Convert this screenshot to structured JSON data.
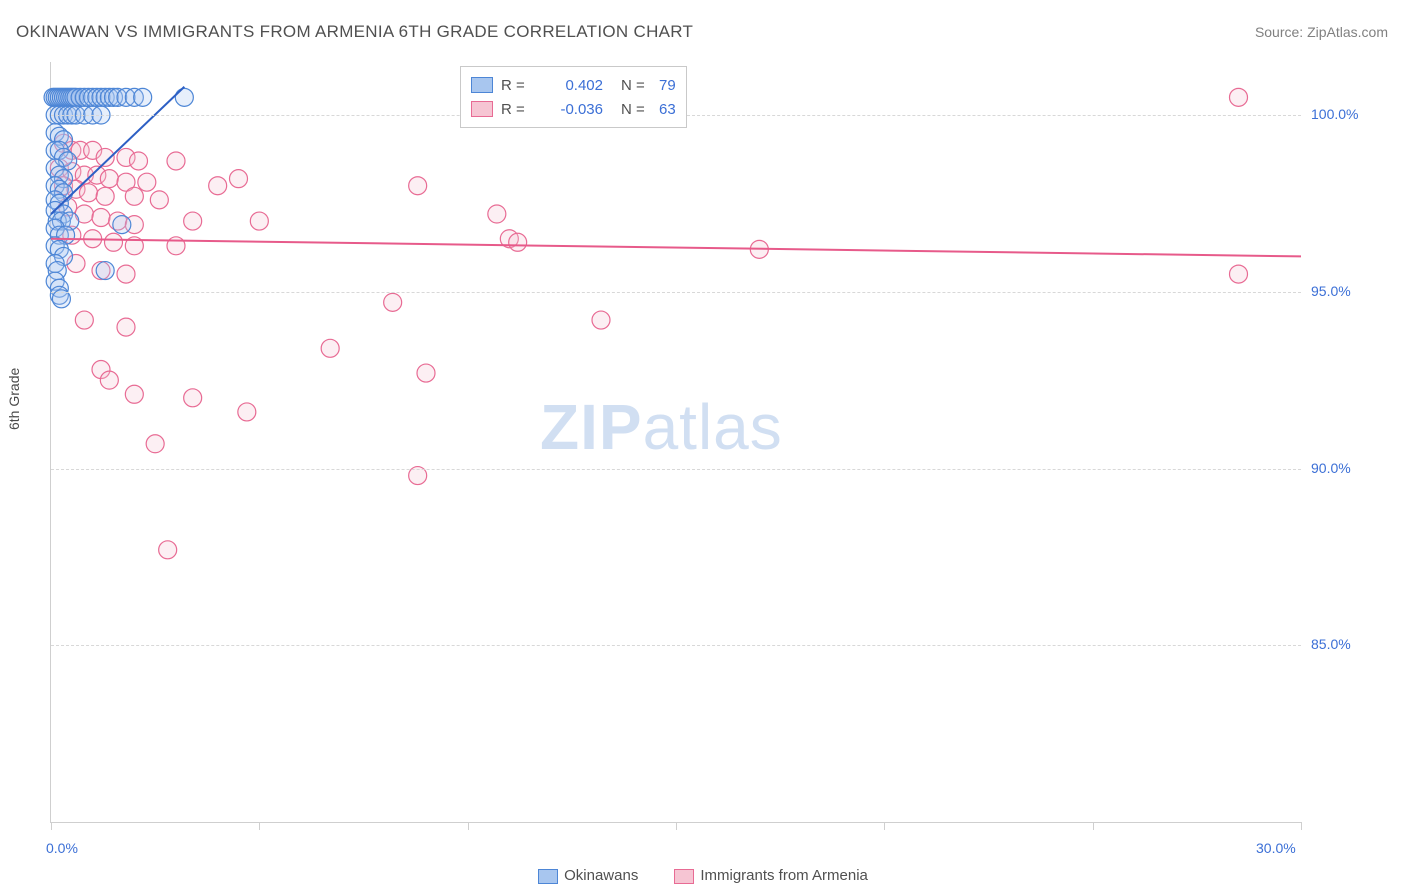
{
  "title": "OKINAWAN VS IMMIGRANTS FROM ARMENIA 6TH GRADE CORRELATION CHART",
  "source_label": "Source: ",
  "source_name": "ZipAtlas.com",
  "watermark_zip": "ZIP",
  "watermark_rest": "atlas",
  "chart": {
    "type": "scatter",
    "ylabel": "6th Grade",
    "xlim": [
      0,
      30
    ],
    "ylim": [
      80,
      101.5
    ],
    "xticks": [
      0,
      5,
      10,
      15,
      20,
      25,
      30
    ],
    "xtick_labels_shown": {
      "0": "0.0%",
      "30": "30.0%"
    },
    "yticks": [
      85,
      90,
      95,
      100
    ],
    "ytick_labels": [
      "85.0%",
      "90.0%",
      "95.0%",
      "100.0%"
    ],
    "background_color": "#ffffff",
    "grid_color": "#d8d8d8",
    "axis_color": "#cfcfcf",
    "tick_label_color": "#3b6fd6",
    "marker_radius": 9,
    "marker_stroke_width": 1.2,
    "marker_fill_opacity": 0.28,
    "trend_line_width": 2,
    "series": [
      {
        "name": "Okinawans",
        "fill": "#a8c6ef",
        "stroke": "#4d86d6",
        "r_label": "R =",
        "r_value": "0.402",
        "n_label": "N =",
        "n_value": "79",
        "trend": {
          "x1": 0.0,
          "y1": 97.2,
          "x2": 3.2,
          "y2": 100.8,
          "color": "#2d5fc4"
        },
        "points": [
          [
            0.05,
            100.5
          ],
          [
            0.1,
            100.5
          ],
          [
            0.15,
            100.5
          ],
          [
            0.2,
            100.5
          ],
          [
            0.25,
            100.5
          ],
          [
            0.3,
            100.5
          ],
          [
            0.35,
            100.5
          ],
          [
            0.4,
            100.5
          ],
          [
            0.45,
            100.5
          ],
          [
            0.5,
            100.5
          ],
          [
            0.55,
            100.5
          ],
          [
            0.6,
            100.5
          ],
          [
            0.7,
            100.5
          ],
          [
            0.8,
            100.5
          ],
          [
            0.9,
            100.5
          ],
          [
            1.0,
            100.5
          ],
          [
            1.1,
            100.5
          ],
          [
            1.2,
            100.5
          ],
          [
            1.3,
            100.5
          ],
          [
            1.4,
            100.5
          ],
          [
            1.5,
            100.5
          ],
          [
            1.6,
            100.5
          ],
          [
            1.8,
            100.5
          ],
          [
            2.0,
            100.5
          ],
          [
            2.2,
            100.5
          ],
          [
            0.1,
            100.0
          ],
          [
            0.2,
            100.0
          ],
          [
            0.3,
            100.0
          ],
          [
            0.4,
            100.0
          ],
          [
            0.5,
            100.0
          ],
          [
            0.6,
            100.0
          ],
          [
            0.8,
            100.0
          ],
          [
            1.0,
            100.0
          ],
          [
            1.2,
            100.0
          ],
          [
            3.2,
            100.5
          ],
          [
            0.1,
            99.5
          ],
          [
            0.2,
            99.4
          ],
          [
            0.3,
            99.3
          ],
          [
            0.1,
            99.0
          ],
          [
            0.2,
            99.0
          ],
          [
            0.3,
            98.8
          ],
          [
            0.4,
            98.7
          ],
          [
            0.1,
            98.5
          ],
          [
            0.2,
            98.3
          ],
          [
            0.3,
            98.2
          ],
          [
            0.1,
            98.0
          ],
          [
            0.2,
            97.9
          ],
          [
            0.3,
            97.8
          ],
          [
            0.1,
            97.6
          ],
          [
            0.2,
            97.5
          ],
          [
            0.1,
            97.3
          ],
          [
            0.3,
            97.2
          ],
          [
            0.15,
            97.0
          ],
          [
            0.25,
            97.0
          ],
          [
            0.45,
            97.0
          ],
          [
            0.1,
            96.8
          ],
          [
            0.2,
            96.6
          ],
          [
            0.35,
            96.6
          ],
          [
            1.7,
            96.9
          ],
          [
            0.1,
            96.3
          ],
          [
            0.2,
            96.2
          ],
          [
            0.3,
            96.0
          ],
          [
            0.1,
            95.8
          ],
          [
            0.15,
            95.6
          ],
          [
            1.3,
            95.6
          ],
          [
            0.1,
            95.3
          ],
          [
            0.2,
            95.1
          ],
          [
            0.2,
            94.9
          ],
          [
            0.25,
            94.8
          ]
        ]
      },
      {
        "name": "Immigrants from Armenia",
        "fill": "#f6c5d3",
        "stroke": "#e86b94",
        "r_label": "R =",
        "r_value": "-0.036",
        "n_label": "N =",
        "n_value": "63",
        "trend": {
          "x1": 0.0,
          "y1": 96.5,
          "x2": 30.0,
          "y2": 96.0,
          "color": "#e75a8a"
        },
        "points": [
          [
            28.5,
            100.5
          ],
          [
            0.3,
            99.2
          ],
          [
            0.5,
            99.0
          ],
          [
            0.7,
            99.0
          ],
          [
            1.0,
            99.0
          ],
          [
            1.3,
            98.8
          ],
          [
            1.8,
            98.8
          ],
          [
            2.1,
            98.7
          ],
          [
            3.0,
            98.7
          ],
          [
            0.2,
            98.5
          ],
          [
            0.5,
            98.4
          ],
          [
            0.8,
            98.3
          ],
          [
            1.1,
            98.3
          ],
          [
            1.4,
            98.2
          ],
          [
            1.8,
            98.1
          ],
          [
            2.3,
            98.1
          ],
          [
            0.3,
            98.0
          ],
          [
            0.6,
            97.9
          ],
          [
            0.9,
            97.8
          ],
          [
            1.3,
            97.7
          ],
          [
            2.0,
            97.7
          ],
          [
            2.6,
            97.6
          ],
          [
            4.0,
            98.0
          ],
          [
            4.5,
            98.2
          ],
          [
            8.8,
            98.0
          ],
          [
            0.4,
            97.4
          ],
          [
            0.8,
            97.2
          ],
          [
            1.2,
            97.1
          ],
          [
            1.6,
            97.0
          ],
          [
            2.0,
            96.9
          ],
          [
            3.4,
            97.0
          ],
          [
            5.0,
            97.0
          ],
          [
            0.5,
            96.6
          ],
          [
            1.0,
            96.5
          ],
          [
            1.5,
            96.4
          ],
          [
            2.0,
            96.3
          ],
          [
            3.0,
            96.3
          ],
          [
            10.7,
            97.2
          ],
          [
            11.0,
            96.5
          ],
          [
            11.2,
            96.4
          ],
          [
            17.0,
            96.2
          ],
          [
            0.6,
            95.8
          ],
          [
            1.2,
            95.6
          ],
          [
            1.8,
            95.5
          ],
          [
            28.5,
            95.5
          ],
          [
            8.2,
            94.7
          ],
          [
            0.8,
            94.2
          ],
          [
            1.8,
            94.0
          ],
          [
            13.2,
            94.2
          ],
          [
            6.7,
            93.4
          ],
          [
            1.2,
            92.8
          ],
          [
            3.4,
            92.0
          ],
          [
            2.0,
            92.1
          ],
          [
            4.7,
            91.6
          ],
          [
            1.4,
            92.5
          ],
          [
            9.0,
            92.7
          ],
          [
            2.5,
            90.7
          ],
          [
            8.8,
            89.8
          ],
          [
            2.8,
            87.7
          ]
        ]
      }
    ]
  },
  "legend_bottom": [
    {
      "label": "Okinawans",
      "fill": "#a8c6ef",
      "stroke": "#4d86d6"
    },
    {
      "label": "Immigrants from Armenia",
      "fill": "#f6c5d3",
      "stroke": "#e86b94"
    }
  ]
}
